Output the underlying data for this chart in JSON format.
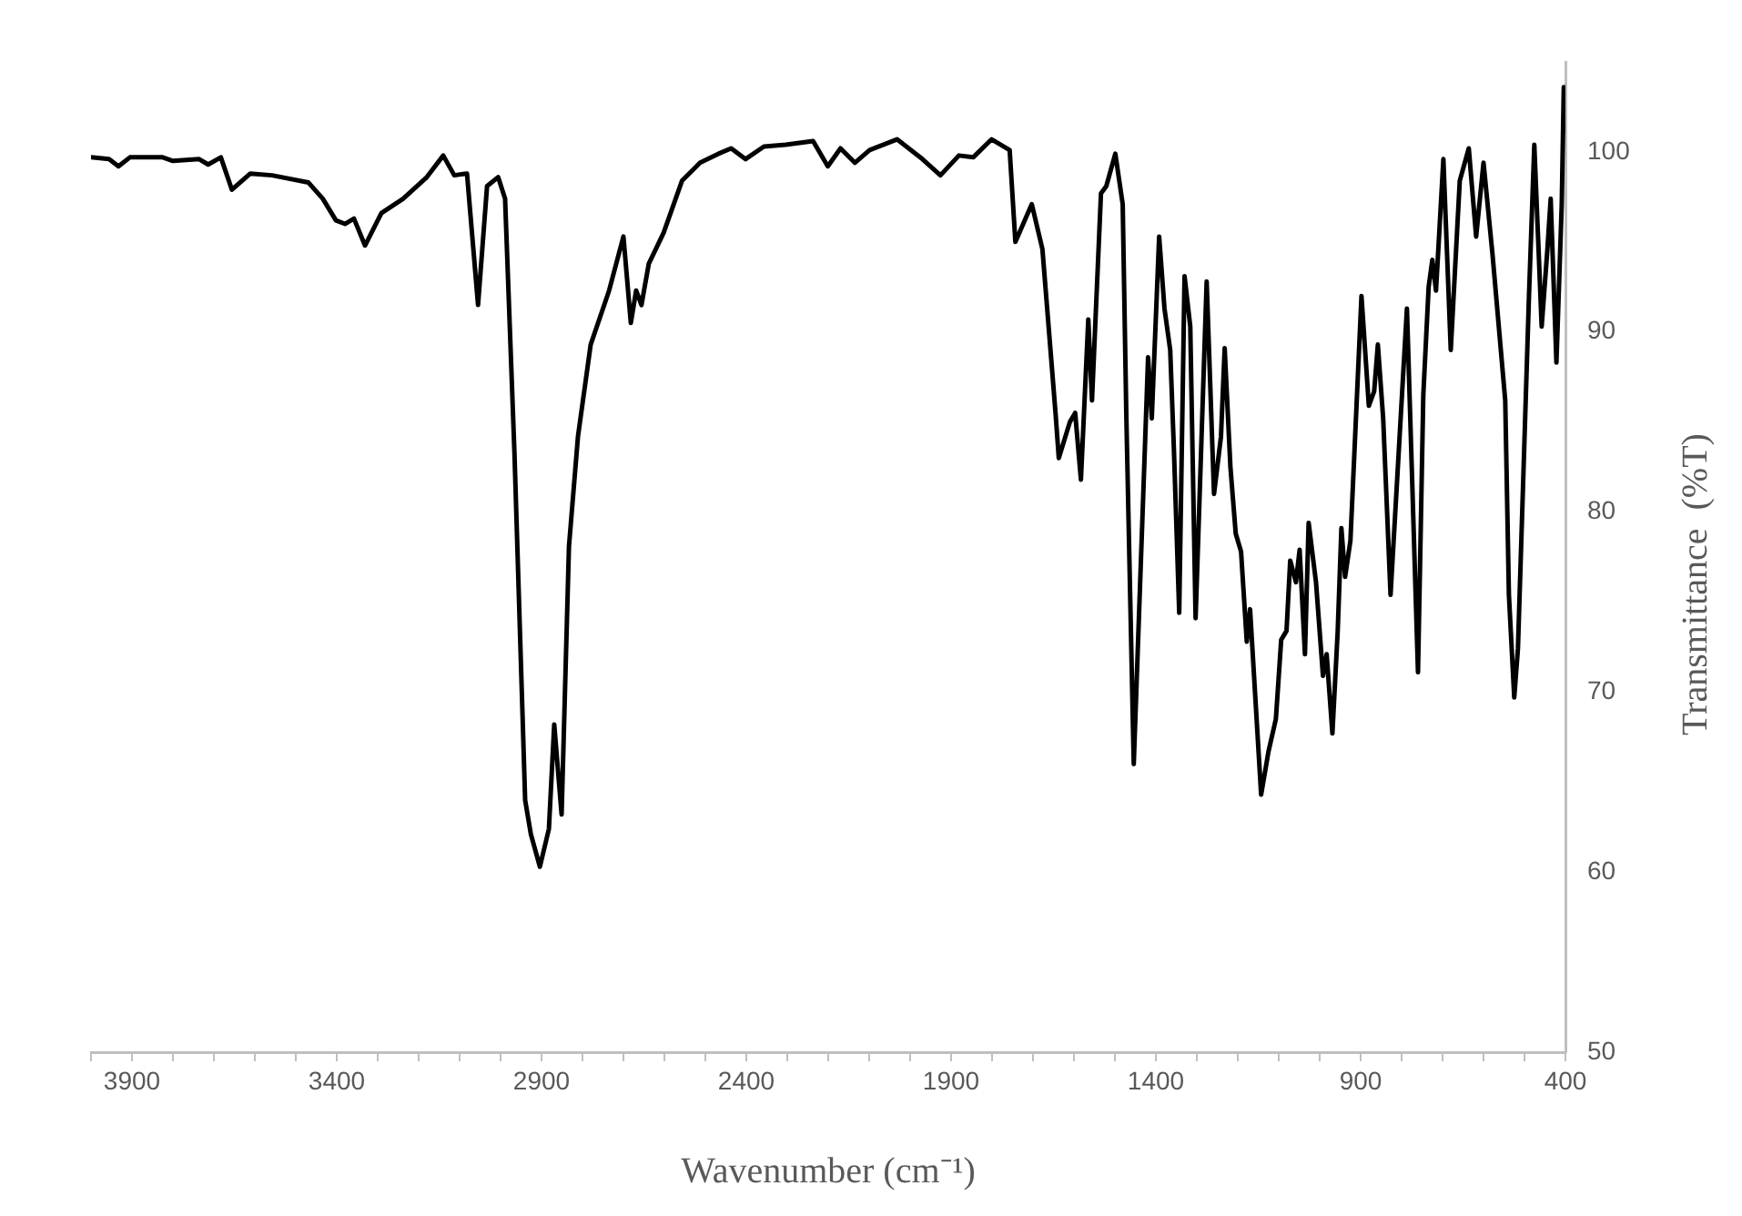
{
  "chart_data": {
    "type": "line",
    "xlabel": "Wavenumber (cm⁻¹)",
    "ylabel": "Transmittance  (%T)",
    "xlim": [
      4000,
      400
    ],
    "ylim": [
      50,
      105
    ],
    "xticks": [
      {
        "value": 4000,
        "label": null
      },
      3900,
      {
        "value": 3800,
        "label": null
      },
      {
        "value": 3700,
        "label": null
      },
      {
        "value": 3600,
        "label": null
      },
      {
        "value": 3500,
        "label": null
      },
      3400,
      {
        "value": 3300,
        "label": null
      },
      {
        "value": 3200,
        "label": null
      },
      {
        "value": 3100,
        "label": null
      },
      {
        "value": 3000,
        "label": null
      },
      2900,
      {
        "value": 2800,
        "label": null
      },
      {
        "value": 2700,
        "label": null
      },
      {
        "value": 2600,
        "label": null
      },
      {
        "value": 2500,
        "label": null
      },
      2400,
      {
        "value": 2300,
        "label": null
      },
      {
        "value": 2200,
        "label": null
      },
      {
        "value": 2100,
        "label": null
      },
      {
        "value": 2000,
        "label": null
      },
      1900,
      {
        "value": 1800,
        "label": null
      },
      {
        "value": 1700,
        "label": null
      },
      {
        "value": 1600,
        "label": null
      },
      {
        "value": 1500,
        "label": null
      },
      1400,
      {
        "value": 1300,
        "label": null
      },
      {
        "value": 1200,
        "label": null
      },
      {
        "value": 1100,
        "label": null
      },
      {
        "value": 1000,
        "label": null
      },
      900,
      {
        "value": 800,
        "label": null
      },
      {
        "value": 700,
        "label": null
      },
      {
        "value": 600,
        "label": null
      },
      {
        "value": 500,
        "label": null
      },
      400
    ],
    "yticks": [
      50,
      60,
      70,
      80,
      90,
      100
    ],
    "grid": false,
    "legend": false,
    "marker": "none",
    "line_style": "solid",
    "series": [
      {
        "color": "#000000",
        "x": [
          4000,
          3956,
          3933,
          3905,
          3825,
          3800,
          3736,
          3714,
          3683,
          3656,
          3611,
          3558,
          3469,
          3434,
          3402,
          3380,
          3358,
          3331,
          3291,
          3238,
          3180,
          3140,
          3113,
          3082,
          3055,
          3033,
          3006,
          2989,
          2966,
          2940,
          2926,
          2904,
          2882,
          2869,
          2851,
          2833,
          2811,
          2780,
          2735,
          2700,
          2682,
          2669,
          2656,
          2638,
          2602,
          2557,
          2513,
          2468,
          2437,
          2402,
          2357,
          2304,
          2237,
          2201,
          2170,
          2135,
          2099,
          2032,
          1970,
          1926,
          1881,
          1846,
          1801,
          1757,
          1743,
          1703,
          1677,
          1645,
          1637,
          1610,
          1597,
          1583,
          1565,
          1556,
          1534,
          1521,
          1499,
          1481,
          1472,
          1454,
          1419,
          1410,
          1392,
          1379,
          1365,
          1356,
          1343,
          1330,
          1316,
          1303,
          1276,
          1258,
          1241,
          1232,
          1218,
          1205,
          1192,
          1178,
          1170,
          1143,
          1125,
          1107,
          1094,
          1081,
          1072,
          1058,
          1049,
          1036,
          1027,
          1009,
          992,
          983,
          969,
          956,
          947,
          938,
          925,
          898,
          880,
          867,
          858,
          845,
          827,
          787,
          760,
          747,
          734,
          725,
          716,
          698,
          680,
          658,
          636,
          618,
          600,
          578,
          547,
          538,
          525,
          516,
          489,
          476,
          458,
          444,
          436,
          422,
          409,
          404,
          400
        ],
        "values": [
          99.7,
          99.6,
          99.2,
          99.7,
          99.7,
          99.5,
          99.6,
          99.3,
          99.7,
          97.9,
          98.8,
          98.7,
          98.3,
          97.4,
          96.2,
          96.0,
          96.3,
          94.8,
          96.6,
          97.4,
          98.6,
          99.8,
          98.7,
          98.8,
          91.5,
          98.1,
          98.6,
          97.4,
          83.2,
          64.0,
          62.1,
          60.3,
          62.4,
          68.2,
          63.2,
          78.1,
          84.2,
          89.3,
          92.3,
          95.3,
          90.5,
          92.3,
          91.5,
          93.8,
          95.5,
          98.4,
          99.4,
          99.9,
          100.2,
          99.6,
          100.3,
          100.4,
          100.6,
          99.2,
          100.2,
          99.4,
          100.1,
          100.7,
          99.6,
          98.7,
          99.8,
          99.7,
          100.7,
          100.1,
          95.0,
          97.1,
          94.6,
          85.5,
          83.0,
          85.0,
          85.5,
          81.8,
          90.7,
          86.2,
          97.7,
          98.1,
          99.9,
          97.1,
          85.2,
          66.0,
          88.6,
          85.2,
          95.3,
          91.3,
          89.0,
          83.5,
          74.4,
          93.1,
          90.3,
          74.1,
          92.8,
          81.0,
          84.2,
          89.1,
          82.5,
          78.8,
          77.8,
          72.8,
          74.6,
          64.3,
          66.7,
          68.5,
          72.9,
          73.4,
          77.3,
          76.1,
          77.9,
          72.1,
          79.4,
          76.1,
          70.9,
          72.1,
          67.7,
          73.4,
          79.1,
          76.4,
          78.4,
          92.0,
          85.9,
          86.7,
          89.3,
          85.2,
          75.4,
          91.3,
          71.1,
          86.5,
          92.5,
          94.0,
          92.3,
          99.6,
          89.0,
          98.4,
          100.2,
          95.3,
          99.4,
          94.3,
          86.2,
          75.4,
          69.7,
          72.4,
          92.0,
          100.4,
          90.3,
          94.6,
          97.4,
          88.3,
          97.1,
          103.6,
          101.2
        ]
      }
    ]
  }
}
